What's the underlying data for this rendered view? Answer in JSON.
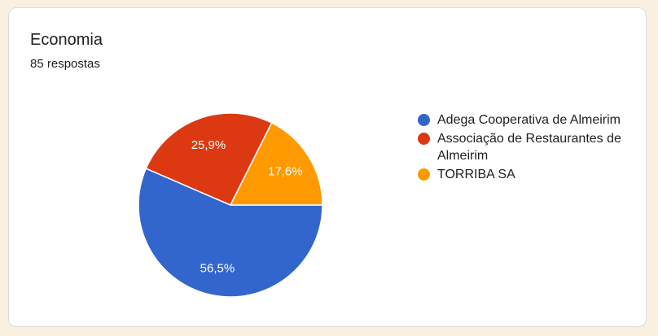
{
  "page": {
    "background_color": "#faf0e0"
  },
  "card": {
    "title": "Economia",
    "subtitle": "85 respostas",
    "background_color": "#ffffff",
    "border_color": "#dadce0"
  },
  "chart_data": {
    "type": "pie",
    "title": "Economia",
    "subtitle": "85 respostas",
    "total_responses": 85,
    "categories": [
      "Adega Cooperativa de Almeirim",
      "Associação de Restaurantes de Almeirim",
      "TORRIBA SA"
    ],
    "values": [
      56.5,
      25.9,
      17.6
    ],
    "value_labels": [
      "56,5%",
      "25,9%",
      "17,6%"
    ],
    "colors": [
      "#3366CC",
      "#DC3912",
      "#FF9900"
    ],
    "slice_label_color": "#ffffff",
    "legend_position": "right",
    "start_angle": "3-oclock, clockwise"
  }
}
